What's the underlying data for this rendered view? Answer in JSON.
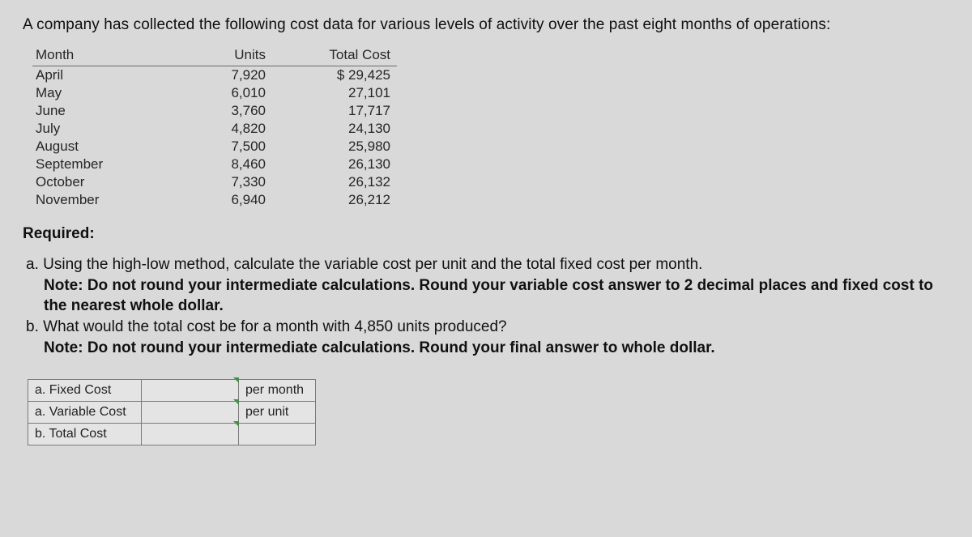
{
  "intro": "A company has collected the following cost data for various levels of activity over the past eight months of operations:",
  "table": {
    "headers": {
      "month": "Month",
      "units": "Units",
      "cost": "Total Cost"
    },
    "rows": [
      {
        "month": "April",
        "units": "7,920",
        "cost": "$ 29,425"
      },
      {
        "month": "May",
        "units": "6,010",
        "cost": "27,101"
      },
      {
        "month": "June",
        "units": "3,760",
        "cost": "17,717"
      },
      {
        "month": "July",
        "units": "4,820",
        "cost": "24,130"
      },
      {
        "month": "August",
        "units": "7,500",
        "cost": "25,980"
      },
      {
        "month": "September",
        "units": "8,460",
        "cost": "26,130"
      },
      {
        "month": "October",
        "units": "7,330",
        "cost": "26,132"
      },
      {
        "month": "November",
        "units": "6,940",
        "cost": "26,212"
      }
    ]
  },
  "required_label": "Required:",
  "questions": {
    "a_label": "a.",
    "a_text": " Using the high-low method, calculate the variable cost per unit and the total fixed cost per month.",
    "a_note": "Note: Do not round your intermediate calculations. Round your variable cost answer to 2 decimal places and fixed cost to the nearest whole dollar.",
    "b_label": "b.",
    "b_text": " What would the total cost be for a month with 4,850 units produced?",
    "b_note": "Note: Do not round your intermediate calculations. Round your final answer to whole dollar."
  },
  "answers": {
    "rows": [
      {
        "label": "a. Fixed Cost",
        "suffix": "per month"
      },
      {
        "label": "a. Variable Cost",
        "suffix": "per unit"
      },
      {
        "label": "b. Total Cost",
        "suffix": ""
      }
    ]
  }
}
